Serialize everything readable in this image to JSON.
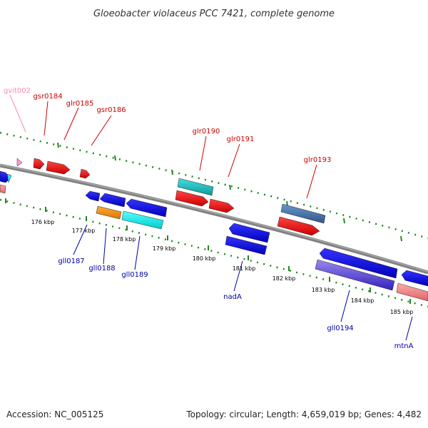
{
  "title": "Gloeobacter violaceus PCC 7421, complete genome",
  "footer": {
    "accession": "Accession: NC_005125",
    "summary": "Topology: circular; Length: 4,659,019 bp; Genes: 4,482"
  },
  "colors": {
    "top_label": "#cc0000",
    "top_label_pink": "#ff88aa",
    "bottom_label": "#0000aa",
    "tick_green": "#228822",
    "backbone": "#808080"
  },
  "scale_ticks": [
    "176 kbp",
    "177 kbp",
    "178 kbp",
    "179 kbp",
    "180 kbp",
    "181 kbp",
    "182 kbp",
    "183 kbp",
    "184 kbp",
    "185 kbp"
  ],
  "top_genes": [
    {
      "label": "gvit002",
      "color": "#ff88aa"
    },
    {
      "label": "gsr0184",
      "color": "#cc0000"
    },
    {
      "label": "glr0185",
      "color": "#cc0000"
    },
    {
      "label": "gsr0186",
      "color": "#cc0000"
    },
    {
      "label": "glr0190",
      "color": "#cc0000"
    },
    {
      "label": "glr0191",
      "color": "#cc0000"
    },
    {
      "label": "glr0193",
      "color": "#cc0000"
    }
  ],
  "bottom_genes": [
    {
      "label": "gll0187"
    },
    {
      "label": "gll0188"
    },
    {
      "label": "gll0189"
    },
    {
      "label": "nadA"
    },
    {
      "label": "gll0194"
    },
    {
      "label": "mtnA"
    }
  ]
}
